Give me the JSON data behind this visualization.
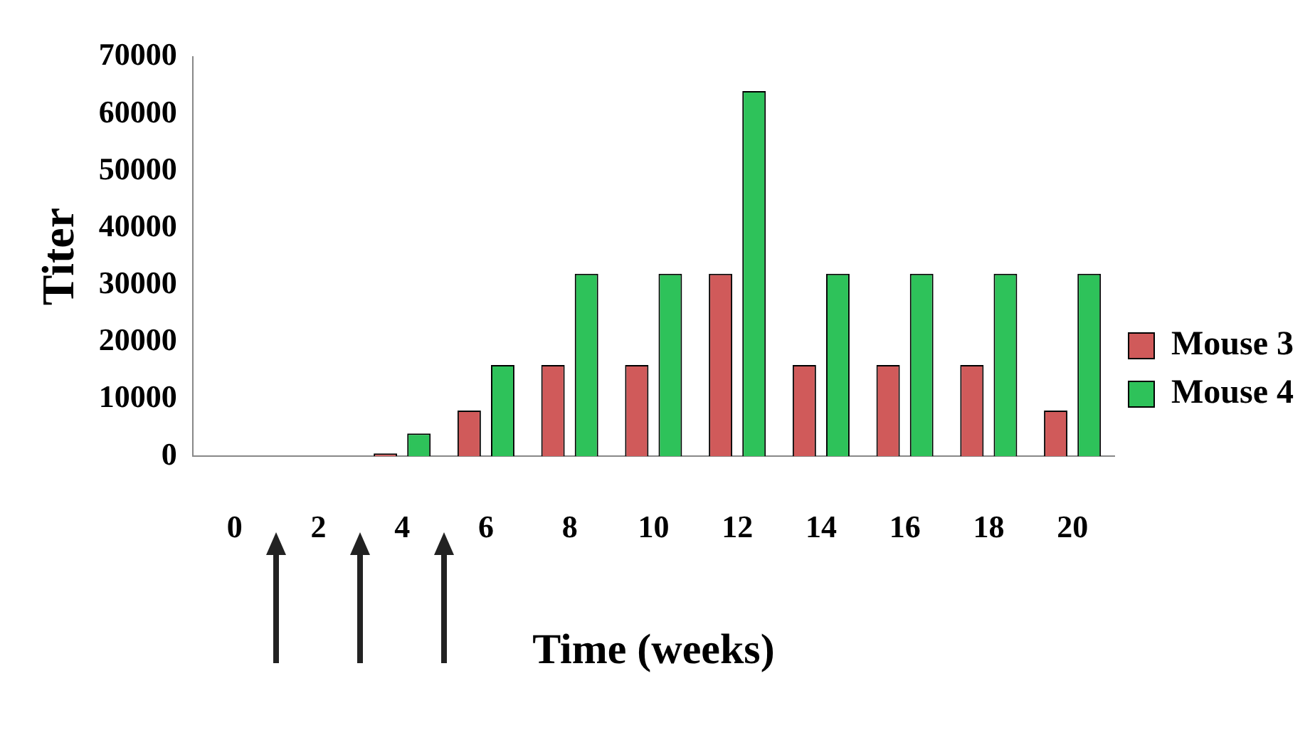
{
  "chart_data": {
    "type": "bar",
    "xlabel": "Time (weeks)",
    "ylabel": "Titer",
    "categories": [
      "0",
      "2",
      "4",
      "6",
      "8",
      "10",
      "12",
      "14",
      "16",
      "18",
      "20"
    ],
    "series": [
      {
        "name": "Mouse 3",
        "color": "#d05a5a",
        "values": [
          0,
          0,
          500,
          8000,
          16000,
          16000,
          32000,
          16000,
          16000,
          16000,
          8000
        ]
      },
      {
        "name": "Mouse 4",
        "color": "#2ec25a",
        "values": [
          0,
          0,
          4000,
          16000,
          32000,
          32000,
          64000,
          32000,
          32000,
          32000,
          32000
        ]
      }
    ],
    "ylim": [
      0,
      70000
    ],
    "yticks": [
      0,
      10000,
      20000,
      30000,
      40000,
      50000,
      60000,
      70000
    ],
    "grid": false,
    "legend": "right"
  }
}
